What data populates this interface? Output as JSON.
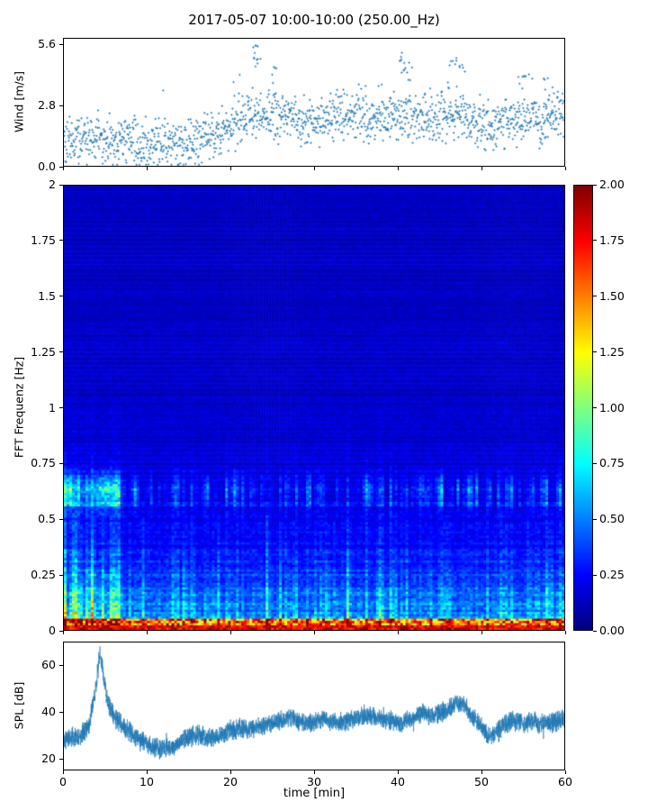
{
  "title": "2017-05-07 10:00-10:00 (250.00_Hz)",
  "chart_data": [
    {
      "type": "scatter",
      "name": "wind",
      "ylabel": "Wind [m/s]",
      "ylim": [
        0,
        5.9
      ],
      "yticks": [
        "0.0",
        "2.8",
        "5.6"
      ],
      "ytick_values": [
        0,
        2.8,
        5.6
      ],
      "xlim": [
        0,
        60
      ],
      "marker_color": "#1f77b4",
      "noise_sd": 0.55,
      "seed": 42,
      "envelope": [
        [
          0,
          1.1
        ],
        [
          3,
          1.3
        ],
        [
          5,
          1.1
        ],
        [
          7,
          1.2
        ],
        [
          9,
          1.0
        ],
        [
          11,
          1.1
        ],
        [
          13,
          1.0
        ],
        [
          15,
          1.1
        ],
        [
          17,
          1.2
        ],
        [
          19,
          1.6
        ],
        [
          21,
          2.0
        ],
        [
          23,
          2.4
        ],
        [
          25,
          2.3
        ],
        [
          27,
          2.2
        ],
        [
          29,
          2.1
        ],
        [
          31,
          2.2
        ],
        [
          33,
          2.3
        ],
        [
          35,
          2.2
        ],
        [
          37,
          2.1
        ],
        [
          39,
          2.3
        ],
        [
          41,
          2.4
        ],
        [
          43,
          2.2
        ],
        [
          45,
          2.3
        ],
        [
          47,
          2.5
        ],
        [
          49,
          2.2
        ],
        [
          51,
          1.8
        ],
        [
          53,
          2.1
        ],
        [
          55,
          2.3
        ],
        [
          57,
          2.0
        ],
        [
          59,
          2.4
        ],
        [
          60,
          2.5
        ]
      ],
      "peaks": [
        [
          22.8,
          5.6
        ],
        [
          23.3,
          5.0
        ],
        [
          25,
          4.6
        ],
        [
          40.5,
          5.3
        ],
        [
          41,
          4.8
        ],
        [
          46.5,
          5.0
        ],
        [
          47.5,
          4.8
        ],
        [
          55,
          4.3
        ],
        [
          58,
          4.2
        ]
      ]
    },
    {
      "type": "heatmap",
      "name": "spectrogram",
      "ylabel": "FFT Frequenz [Hz]",
      "ylim": [
        0,
        2
      ],
      "yticks": [
        "2",
        "1.75",
        "1.5",
        "1.25",
        "1",
        "0.75",
        "0.5",
        "0.25",
        "0"
      ],
      "ytick_values": [
        2,
        1.75,
        1.5,
        1.25,
        1,
        0.75,
        0.5,
        0.25,
        0
      ],
      "xlim": [
        0,
        60
      ],
      "colormap": "jet",
      "vmin": 0,
      "vmax": 2,
      "background_level": 0.13,
      "lowfreq_amp": 0.55,
      "decay_tau": 0.28,
      "band_freq": 0.62,
      "band_width": 0.05,
      "hot_base_freq": 0.05,
      "early_streak_minutes": 6.5,
      "seed": 7,
      "colorbar_ticks": [
        "2.00",
        "1.75",
        "1.50",
        "1.25",
        "1.00",
        "0.75",
        "0.50",
        "0.25",
        "0.00"
      ],
      "colorbar_tick_values": [
        2,
        1.75,
        1.5,
        1.25,
        1,
        0.75,
        0.5,
        0.25,
        0
      ]
    },
    {
      "type": "line",
      "name": "spl",
      "ylabel": "SPL [dB]",
      "xlabel": "time [min]",
      "ylim": [
        15,
        70
      ],
      "yticks": [
        "20",
        "40",
        "60"
      ],
      "ytick_values": [
        20,
        40,
        60
      ],
      "xticks": [
        "0",
        "10",
        "20",
        "30",
        "40",
        "50",
        "60"
      ],
      "xtick_values": [
        0,
        10,
        20,
        30,
        40,
        50,
        60
      ],
      "line_color": "#1f77b4",
      "noise_sd": 2.0,
      "seed": 11,
      "profile": [
        [
          0,
          28
        ],
        [
          1,
          29
        ],
        [
          2,
          30
        ],
        [
          3,
          34
        ],
        [
          3.8,
          50
        ],
        [
          4.3,
          65
        ],
        [
          4.7,
          57
        ],
        [
          5.2,
          45
        ],
        [
          6,
          38
        ],
        [
          7,
          34
        ],
        [
          8,
          31
        ],
        [
          9,
          28
        ],
        [
          10,
          26
        ],
        [
          11,
          24
        ],
        [
          12,
          24
        ],
        [
          13,
          25
        ],
        [
          14,
          27
        ],
        [
          15,
          29
        ],
        [
          16,
          30
        ],
        [
          17,
          29
        ],
        [
          18,
          28
        ],
        [
          19,
          30
        ],
        [
          20,
          32
        ],
        [
          21,
          33
        ],
        [
          22,
          32
        ],
        [
          23,
          33
        ],
        [
          24,
          34
        ],
        [
          25,
          35
        ],
        [
          26,
          36
        ],
        [
          27,
          38
        ],
        [
          28,
          36
        ],
        [
          29,
          35
        ],
        [
          30,
          36
        ],
        [
          31,
          37
        ],
        [
          32,
          36
        ],
        [
          33,
          35
        ],
        [
          34,
          36
        ],
        [
          35,
          37
        ],
        [
          36,
          38
        ],
        [
          37,
          38
        ],
        [
          38,
          37
        ],
        [
          39,
          36
        ],
        [
          40,
          35
        ],
        [
          41,
          36
        ],
        [
          42,
          37
        ],
        [
          43,
          40
        ],
        [
          44,
          38
        ],
        [
          45,
          39
        ],
        [
          46,
          41
        ],
        [
          47,
          44
        ],
        [
          48,
          43
        ],
        [
          49,
          38
        ],
        [
          50,
          34
        ],
        [
          51,
          29
        ],
        [
          52,
          32
        ],
        [
          53,
          35
        ],
        [
          54,
          36
        ],
        [
          55,
          35
        ],
        [
          56,
          36
        ],
        [
          57,
          35
        ],
        [
          58,
          35
        ],
        [
          59,
          36
        ],
        [
          60,
          37
        ]
      ]
    }
  ]
}
